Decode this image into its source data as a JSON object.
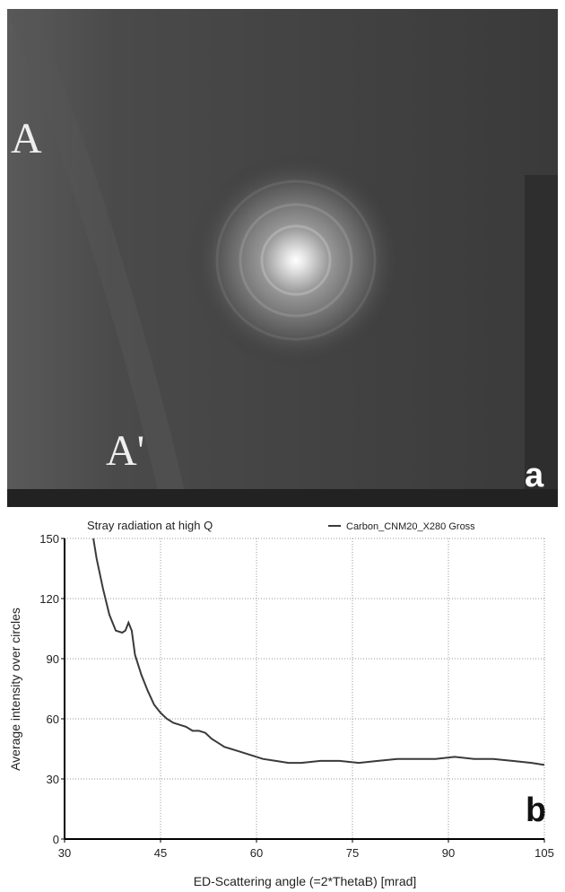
{
  "panel_a": {
    "labels": [
      "A",
      "A'"
    ],
    "panel_label": "a"
  },
  "chart_data": {
    "type": "line",
    "title": "Stray radiation at high Q",
    "panel_label": "b",
    "x_label": "ED-Scattering angle (=2*ThetaB) [mrad]",
    "y_label": "Average intensity over circles",
    "xlim": [
      30,
      105
    ],
    "xticks": [
      30,
      45,
      60,
      75,
      90,
      105
    ],
    "ylim": [
      0,
      150
    ],
    "yticks": [
      0,
      30,
      60,
      90,
      120,
      150
    ],
    "grid": true,
    "legend": "top-right",
    "series": [
      {
        "name": "Carbon_CNM20_X280 Gross",
        "color": "#3a3a3a",
        "x": [
          34.5,
          35,
          36,
          37,
          38,
          39,
          39.5,
          40,
          40.5,
          41,
          42,
          43,
          44,
          45,
          46,
          47,
          48,
          49,
          50,
          51,
          52,
          53,
          54,
          55,
          57,
          59,
          61,
          63,
          65,
          67,
          70,
          73,
          76,
          79,
          82,
          85,
          88,
          91,
          94,
          97,
          100,
          103,
          105
        ],
        "values": [
          150,
          140,
          125,
          112,
          104,
          103,
          104,
          108,
          104,
          92,
          82,
          74,
          67,
          63,
          60,
          58,
          57,
          56,
          54,
          54,
          53,
          50,
          48,
          46,
          44,
          42,
          40,
          39,
          38,
          38,
          39,
          39,
          38,
          39,
          40,
          40,
          40,
          41,
          40,
          40,
          39,
          38,
          37
        ]
      }
    ]
  }
}
